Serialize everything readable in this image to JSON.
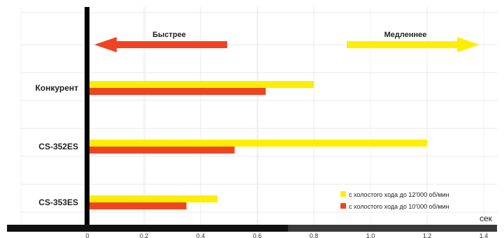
{
  "chart_data": {
    "type": "bar",
    "orientation": "horizontal",
    "categories": [
      {
        "label": "Конкурент",
        "color": "#222222"
      },
      {
        "label": "CS-352ES",
        "color": "#222222"
      },
      {
        "label": "CS-353ES",
        "color": "#e8452c"
      }
    ],
    "series": [
      {
        "name": "с холостого хода до 12'000 об/мин",
        "color": "#ffee00",
        "values": [
          0.8,
          1.2,
          0.46
        ]
      },
      {
        "name": "с холостого хода до 10'000 об/мин",
        "color": "#ef4423",
        "values": [
          0.63,
          0.52,
          0.35
        ]
      }
    ],
    "x_ticks": [
      "0",
      "0,2",
      "0,4",
      "0,6",
      "0,8",
      "1,0",
      "1,2",
      "1,4"
    ],
    "xlim": [
      0,
      1.4
    ],
    "x_unit": "сек",
    "grid": true,
    "legend_position": "bottom-right",
    "annotations": {
      "faster": {
        "label": "Быстрее",
        "direction": "left",
        "color": "#ef4423"
      },
      "slower": {
        "label": "Медленнее",
        "direction": "right",
        "color": "#ffee00"
      }
    }
  }
}
